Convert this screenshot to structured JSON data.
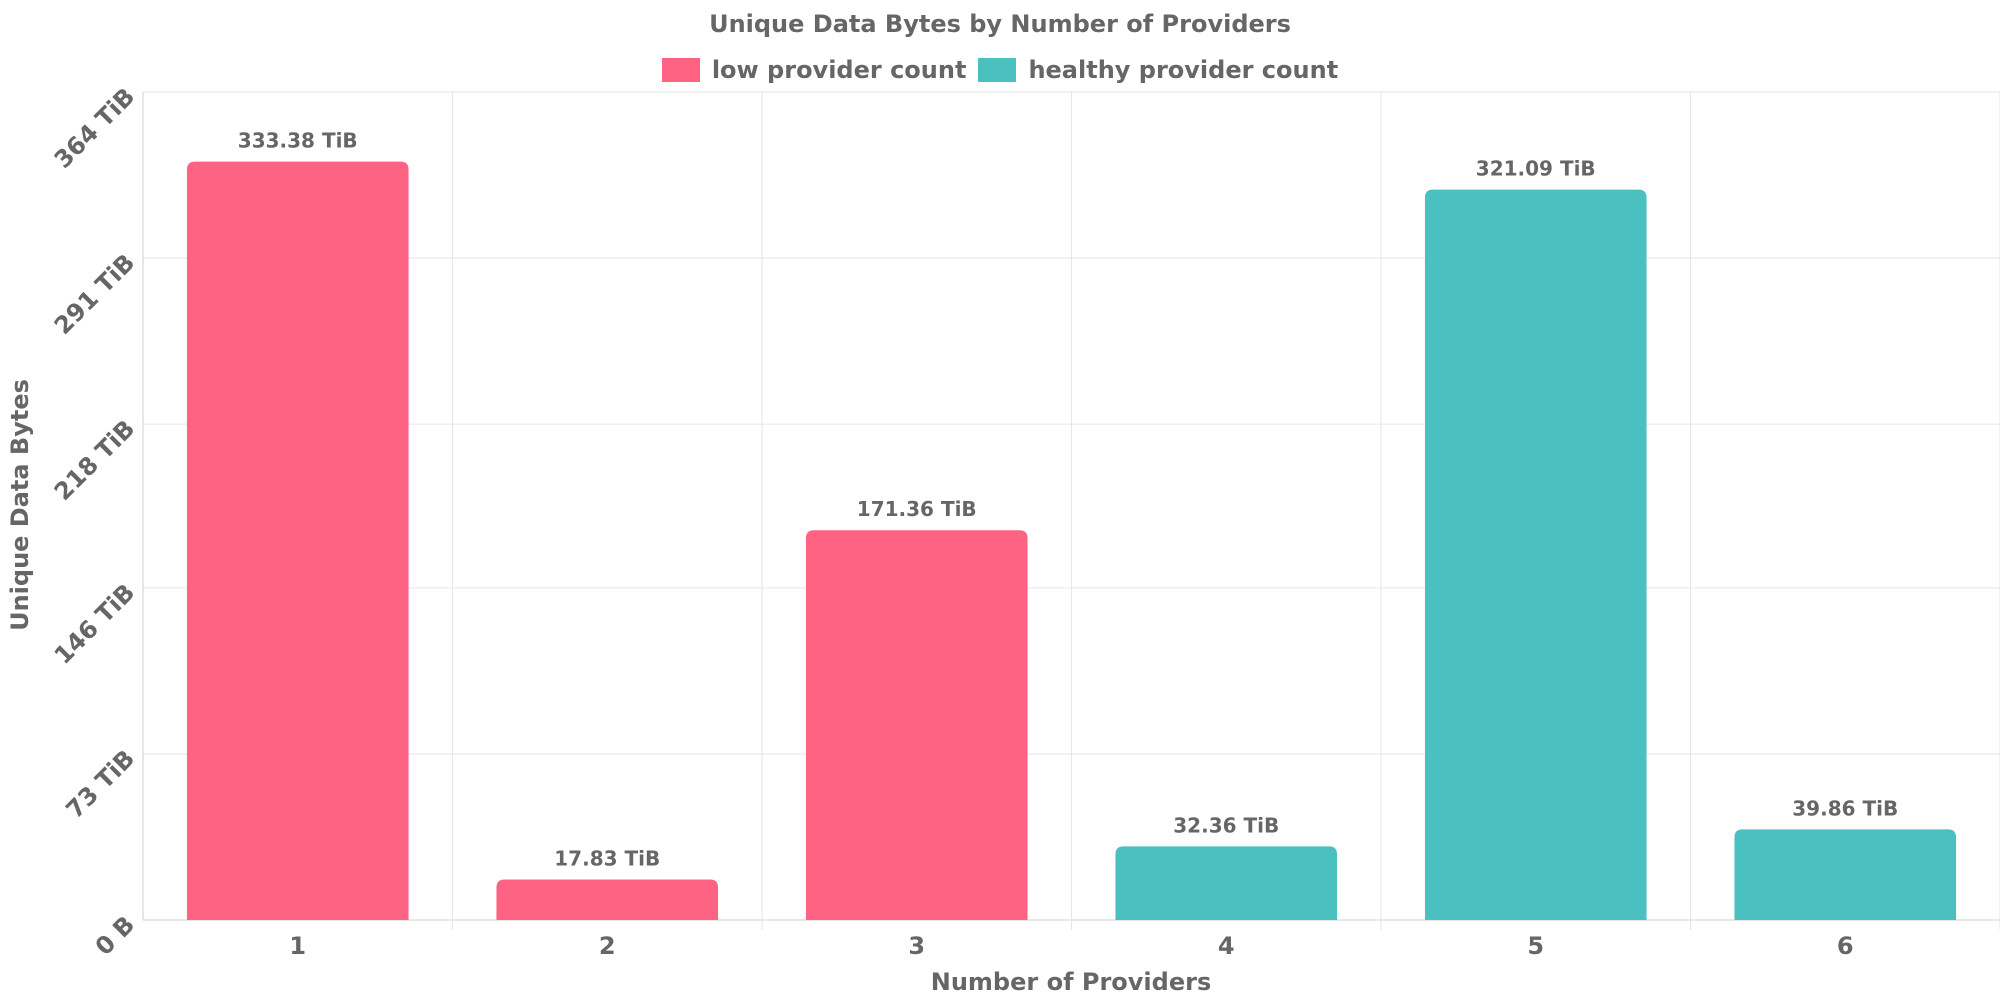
{
  "chart_data": {
    "type": "bar",
    "title": "Unique Data Bytes by Number of Providers",
    "xlabel": "Number of Providers",
    "ylabel": "Unique Data Bytes",
    "categories": [
      "1",
      "2",
      "3",
      "4",
      "5",
      "6"
    ],
    "values": [
      333.38,
      17.83,
      171.36,
      32.36,
      321.09,
      39.86
    ],
    "value_labels": [
      "333.38 TiB",
      "17.83 TiB",
      "171.36 TiB",
      "32.36 TiB",
      "321.09 TiB",
      "39.86 TiB"
    ],
    "bar_series": [
      "low provider count",
      "low provider count",
      "low provider count",
      "healthy provider count",
      "healthy provider count",
      "healthy provider count"
    ],
    "unit": "TiB",
    "ylim": [
      0,
      364
    ],
    "yticks": [
      0,
      73,
      146,
      218,
      291,
      364
    ],
    "ytick_labels": [
      "0 B",
      "73 TiB",
      "146 TiB",
      "218 TiB",
      "291 TiB",
      "364 TiB"
    ],
    "grid": true,
    "legend": {
      "placement": "top-center",
      "entries": [
        {
          "name": "low provider count",
          "color": "#ff6384"
        },
        {
          "name": "healthy provider count",
          "color": "#4bc0c0"
        }
      ]
    }
  }
}
